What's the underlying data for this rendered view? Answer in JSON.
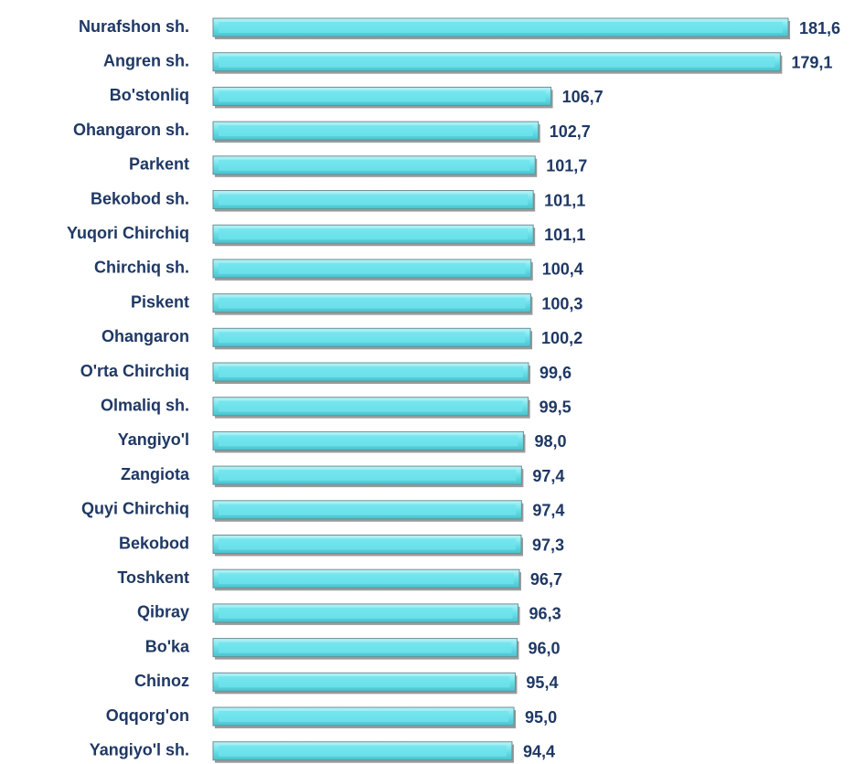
{
  "chart_data": {
    "type": "bar",
    "orientation": "horizontal",
    "color": "#6fe3ec",
    "categories": [
      "Nurafshon sh.",
      "Angren sh.",
      "Bo'stonliq",
      "Ohangaron sh.",
      "Parkent",
      "Bekobod sh.",
      "Yuqori Chirchiq",
      "Chirchiq sh.",
      "Piskent",
      "Ohangaron",
      "O'rta Chirchiq",
      "Olmaliq sh.",
      "Yangiyo'l",
      "Zangiota",
      "Quyi Chirchiq",
      "Bekobod",
      "Toshkent",
      "Qibray",
      "Bo'ka",
      "Chinoz",
      "Oqqorg'on",
      "Yangiyo'l sh."
    ],
    "values": [
      181.6,
      179.1,
      106.7,
      102.7,
      101.7,
      101.1,
      101.1,
      100.4,
      100.3,
      100.2,
      99.6,
      99.5,
      98.0,
      97.4,
      97.4,
      97.3,
      96.7,
      96.3,
      96.0,
      95.4,
      95.0,
      94.4
    ],
    "value_labels": [
      "181,6",
      "179,1",
      "106,7",
      "102,7",
      "101,7",
      "101,1",
      "101,1",
      "100,4",
      "100,3",
      "100,2",
      "99,6",
      "99,5",
      "98,0",
      "97,4",
      "97,4",
      "97,3",
      "96,7",
      "96,3",
      "96,0",
      "95,4",
      "95,0",
      "94,4"
    ]
  }
}
